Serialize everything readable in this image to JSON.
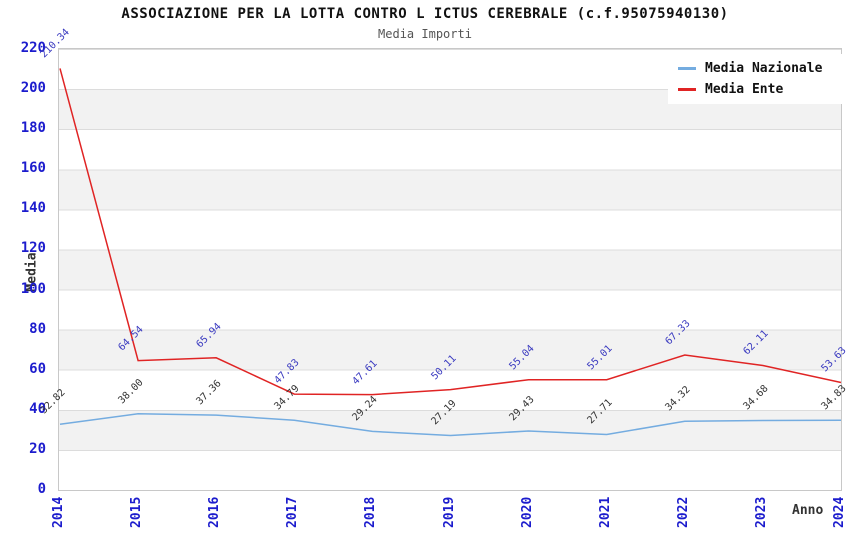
{
  "header": {
    "title": "ASSOCIAZIONE PER LA LOTTA CONTRO L ICTUS CEREBRALE (c.f.95075940130)",
    "subtitle": "Media Importi"
  },
  "legend": {
    "items": [
      {
        "label": "Media Nazionale",
        "color": "#74ace0"
      },
      {
        "label": "Media Ente",
        "color": "#e02424"
      }
    ]
  },
  "colors": {
    "tick_label": "#1c1ccd",
    "nazionale_line": "#74ace0",
    "ente_line": "#e02424",
    "nazionale_value_label": "#333333",
    "ente_value_label": "#3a3ac0",
    "band_gray": "#f2f2f2",
    "gridline": "#dcdcdc"
  },
  "chart_data": {
    "type": "line",
    "title": "ASSOCIAZIONE PER LA LOTTA CONTRO L ICTUS CEREBRALE (c.f.95075940130)",
    "subtitle": "Media Importi",
    "xlabel": "Anno",
    "ylabel": "Media",
    "categories": [
      "2014",
      "2015",
      "2016",
      "2017",
      "2018",
      "2019",
      "2020",
      "2021",
      "2022",
      "2023",
      "2024"
    ],
    "series": [
      {
        "name": "Media Nazionale",
        "color": "#74ace0",
        "label_color": "#333333",
        "values": [
          32.82,
          38.0,
          37.36,
          34.79,
          29.24,
          27.19,
          29.43,
          27.71,
          34.32,
          34.68,
          34.83
        ]
      },
      {
        "name": "Media Ente",
        "color": "#e02424",
        "label_color": "#3a3ac0",
        "values": [
          210.34,
          64.54,
          65.94,
          47.83,
          47.61,
          50.11,
          55.04,
          55.01,
          67.33,
          62.11,
          53.63
        ]
      }
    ],
    "ylim": [
      0,
      220
    ],
    "yticks": [
      0,
      20,
      40,
      60,
      80,
      100,
      120,
      140,
      160,
      180,
      200,
      220
    ],
    "grid": "horizontal-bands",
    "legend_position": "top-right",
    "point_labels": "values shown rotated 45deg at each point"
  }
}
